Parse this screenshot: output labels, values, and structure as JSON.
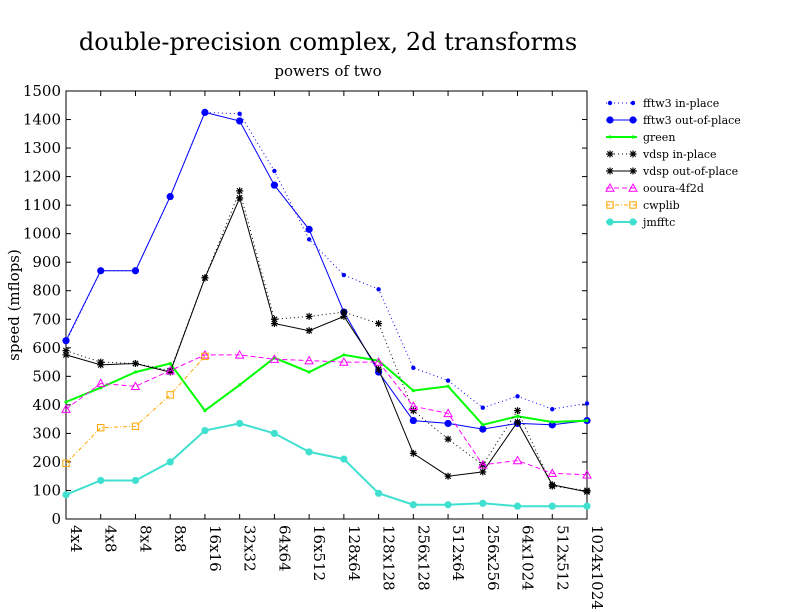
{
  "chart_data": {
    "type": "line",
    "title": "double-precision complex, 2d transforms",
    "subtitle": "powers of two",
    "xlabel": "",
    "ylabel": "speed (mflops)",
    "ylim": [
      0,
      1500
    ],
    "yticks": [
      0,
      100,
      200,
      300,
      400,
      500,
      600,
      700,
      800,
      900,
      1000,
      1100,
      1200,
      1300,
      1400,
      1500
    ],
    "grid": false,
    "legend": "right",
    "categories": [
      "4x4",
      "4x8",
      "8x4",
      "8x8",
      "16x16",
      "32x32",
      "64x64",
      "16x512",
      "128x64",
      "128x128",
      "256x128",
      "512x64",
      "256x256",
      "64x1024",
      "512x512",
      "1024x1024"
    ],
    "series": [
      {
        "name": "fftw3 in-place",
        "color": "#0000ff",
        "dash": "1,3",
        "marker": "dot-small",
        "values": [
          620,
          870,
          870,
          1130,
          1425,
          1420,
          1220,
          980,
          855,
          805,
          530,
          485,
          390,
          430,
          385,
          405
        ]
      },
      {
        "name": "fftw3 out-of-place",
        "color": "#0000ff",
        "dash": "",
        "marker": "dot-large",
        "values": [
          625,
          870,
          870,
          1130,
          1425,
          1395,
          1170,
          1015,
          725,
          515,
          345,
          335,
          315,
          335,
          330,
          345
        ]
      },
      {
        "name": "green",
        "color": "#00ff00",
        "dash": "",
        "marker": "dot-tiny",
        "width": 2,
        "values": [
          410,
          460,
          515,
          545,
          380,
          470,
          565,
          515,
          575,
          555,
          450,
          465,
          330,
          360,
          340,
          345
        ]
      },
      {
        "name": "vdsp in-place",
        "color": "#000000",
        "dash": "1,3",
        "marker": "star",
        "values": [
          590,
          550,
          545,
          520,
          845,
          1150,
          700,
          710,
          725,
          685,
          380,
          280,
          190,
          380,
          115,
          100
        ]
      },
      {
        "name": "vdsp out-of-place",
        "color": "#000000",
        "dash": "",
        "marker": "star",
        "values": [
          575,
          540,
          545,
          515,
          845,
          1125,
          685,
          660,
          710,
          525,
          230,
          150,
          165,
          340,
          120,
          95
        ]
      },
      {
        "name": "ooura-4f2d",
        "color": "#ff00ff",
        "dash": "5,3",
        "marker": "triangle",
        "values": [
          385,
          475,
          465,
          520,
          575,
          575,
          560,
          555,
          550,
          550,
          395,
          370,
          190,
          205,
          160,
          155
        ]
      },
      {
        "name": "cwplib",
        "color": "#ffa500",
        "dash": "4,2,1,2",
        "marker": "square",
        "values": [
          195,
          320,
          325,
          435,
          570,
          null,
          null,
          null,
          null,
          null,
          null,
          null,
          null,
          null,
          null,
          null
        ]
      },
      {
        "name": "jmfftc",
        "color": "#40e0d0",
        "dash": "",
        "marker": "dot-large",
        "width": 2,
        "values": [
          85,
          135,
          135,
          200,
          310,
          335,
          300,
          235,
          210,
          90,
          50,
          50,
          55,
          45,
          45,
          45
        ]
      }
    ]
  }
}
